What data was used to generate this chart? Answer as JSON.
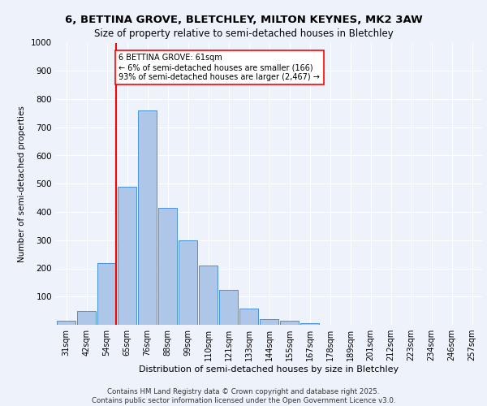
{
  "title_line1": "6, BETTINA GROVE, BLETCHLEY, MILTON KEYNES, MK2 3AW",
  "title_line2": "Size of property relative to semi-detached houses in Bletchley",
  "xlabel": "Distribution of semi-detached houses by size in Bletchley",
  "ylabel": "Number of semi-detached properties",
  "categories": [
    "31sqm",
    "42sqm",
    "54sqm",
    "65sqm",
    "76sqm",
    "88sqm",
    "99sqm",
    "110sqm",
    "121sqm",
    "133sqm",
    "144sqm",
    "155sqm",
    "167sqm",
    "178sqm",
    "189sqm",
    "201sqm",
    "212sqm",
    "223sqm",
    "234sqm",
    "246sqm",
    "257sqm"
  ],
  "values": [
    15,
    50,
    220,
    490,
    760,
    415,
    300,
    210,
    125,
    57,
    20,
    13,
    5,
    0,
    0,
    0,
    0,
    0,
    0,
    0,
    0
  ],
  "bar_color": "#aec6e8",
  "bar_edge_color": "#4a90d9",
  "vline_color": "red",
  "annotation_title": "6 BETTINA GROVE: 61sqm",
  "annotation_line2": "← 6% of semi-detached houses are smaller (166)",
  "annotation_line3": "93% of semi-detached houses are larger (2,467) →",
  "annotation_box_color": "white",
  "annotation_box_edge": "red",
  "background_color": "#eef2fb",
  "grid_color": "#ffffff",
  "ylim": [
    0,
    1000
  ],
  "yticks": [
    0,
    100,
    200,
    300,
    400,
    500,
    600,
    700,
    800,
    900,
    1000
  ],
  "footer_line1": "Contains HM Land Registry data © Crown copyright and database right 2025.",
  "footer_line2": "Contains public sector information licensed under the Open Government Licence v3.0."
}
